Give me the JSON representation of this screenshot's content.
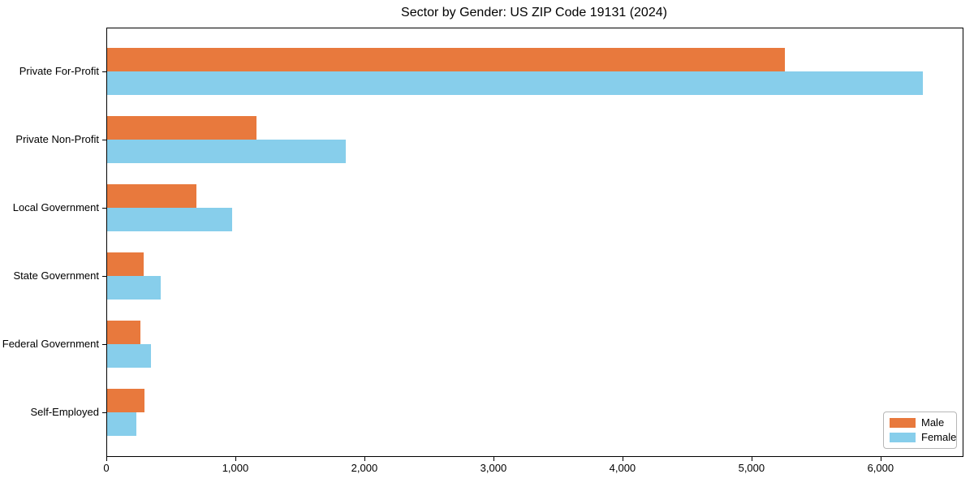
{
  "chart_data": {
    "type": "bar",
    "orientation": "horizontal",
    "title": "Sector by Gender: US ZIP Code 19131 (2024)",
    "categories": [
      "Private For-Profit",
      "Private Non-Profit",
      "Local Government",
      "State Government",
      "Federal Government",
      "Self-Employed"
    ],
    "series": [
      {
        "name": "Male",
        "color": "#e8793d",
        "values": [
          5250,
          1160,
          690,
          280,
          260,
          290
        ]
      },
      {
        "name": "Female",
        "color": "#87ceeb",
        "values": [
          6320,
          1850,
          970,
          415,
          340,
          225
        ]
      }
    ],
    "xlabel": "",
    "ylabel": "",
    "xlim": [
      0,
      6630
    ],
    "xticks": [
      0,
      1000,
      2000,
      3000,
      4000,
      5000,
      6000
    ],
    "grid": false,
    "legend_position": "lower-right",
    "axis_color": "#000000",
    "background_color": "#ffffff"
  }
}
